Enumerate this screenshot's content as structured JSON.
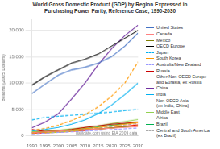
{
  "chart_data": {
    "type": "line",
    "title": "World Gross Domestic Product (GDP) by Region Expressed in\nPurchasing Power Parity, Reference Case, 1990-2030",
    "ylabel": "Billions (2005 Dollars)",
    "annotation": "navigate.com using EIA 2009 data",
    "x": [
      1990,
      1995,
      2000,
      2005,
      2010,
      2015,
      2020,
      2025,
      2030
    ],
    "series": [
      {
        "name": "United States",
        "color": "#4472C4",
        "line_style": "solid",
        "values": [
          8000,
          9800,
          11500,
          12500,
          13000,
          13800,
          15000,
          17000,
          19500
        ]
      },
      {
        "name": "Canada",
        "color": "#FF8080",
        "line_style": "solid",
        "values": [
          600,
          750,
          900,
          1050,
          1150,
          1300,
          1450,
          1600,
          1750
        ]
      },
      {
        "name": "Mexico",
        "color": "#7F7F00",
        "line_style": "solid",
        "values": [
          600,
          750,
          950,
          1050,
          1150,
          1300,
          1500,
          1700,
          1900
        ]
      },
      {
        "name": "OECD Europe",
        "color": "#000000",
        "line_style": "solid",
        "values": [
          9600,
          11200,
          12500,
          13800,
          14500,
          15500,
          17000,
          18500,
          20000
        ]
      },
      {
        "name": "Japan",
        "color": "#00B0F0",
        "line_style": "dashed",
        "values": [
          3000,
          3500,
          3700,
          3900,
          4100,
          4300,
          4500,
          4800,
          5000
        ]
      },
      {
        "name": "South Korea",
        "color": "#FF9900",
        "line_style": "solid",
        "values": [
          500,
          720,
          900,
          1100,
          1350,
          1600,
          1900,
          2200,
          2500
        ]
      },
      {
        "name": "Australia/New Zealand",
        "color": "#9999FF",
        "line_style": "dashed",
        "values": [
          380,
          500,
          620,
          750,
          880,
          1020,
          1160,
          1320,
          1480
        ]
      },
      {
        "name": "Russia",
        "color": "#CC0000",
        "line_style": "solid",
        "values": [
          1200,
          800,
          900,
          1200,
          1600,
          1900,
          2200,
          2400,
          2600
        ]
      },
      {
        "name": "Other Non-OECD Europe\nand Eurasia, ex Russia",
        "color": "#CCCC00",
        "line_style": "solid",
        "values": [
          700,
          600,
          650,
          900,
          1100,
          1300,
          1500,
          1700,
          1900
        ]
      },
      {
        "name": "China",
        "color": "#7030A0",
        "line_style": "solid",
        "values": [
          1500,
          2600,
          4200,
          7000,
          10000,
          13500,
          16500,
          19000,
          21000
        ]
      },
      {
        "name": "India",
        "color": "#00B0F0",
        "line_style": "solid",
        "values": [
          900,
          1200,
          1600,
          2200,
          3000,
          4200,
          5800,
          7800,
          10000
        ]
      },
      {
        "name": "Non-OECD Asia\n(ex India, China)",
        "color": "#FF9900",
        "line_style": "dashed",
        "values": [
          1000,
          1400,
          2000,
          2900,
          4000,
          5500,
          7500,
          10000,
          14000
        ]
      },
      {
        "name": "Middle East",
        "color": "#92D050",
        "line_style": "solid",
        "values": [
          700,
          850,
          1050,
          1300,
          1600,
          1900,
          2300,
          2700,
          3100
        ]
      },
      {
        "name": "Africa",
        "color": "#FF0000",
        "line_style": "solid",
        "values": [
          450,
          550,
          680,
          820,
          1000,
          1250,
          1500,
          1800,
          2100
        ]
      },
      {
        "name": "Brazil",
        "color": "#00B050",
        "line_style": "solid",
        "values": [
          700,
          850,
          1000,
          1150,
          1400,
          1700,
          2000,
          2300,
          2600
        ]
      },
      {
        "name": "Central and South America\n(ex Brazil)",
        "color": "#AAAAAA",
        "line_style": "dashed",
        "values": [
          600,
          750,
          900,
          1050,
          1250,
          1500,
          1750,
          2050,
          2350
        ]
      }
    ],
    "xlim": [
      1990,
      2030
    ],
    "xticks": [
      1990,
      1995,
      2000,
      2005,
      2010,
      2015,
      2020,
      2025,
      2030
    ],
    "ylim": [
      0,
      22000
    ],
    "yticks": [
      0,
      {
        "value": 5000,
        "label": "5,000"
      },
      {
        "value": 10000,
        "label": "10,000"
      },
      {
        "value": 15000,
        "label": "15,000"
      },
      {
        "value": 20000,
        "label": "20,000"
      }
    ],
    "grid": true,
    "legend": "right"
  }
}
